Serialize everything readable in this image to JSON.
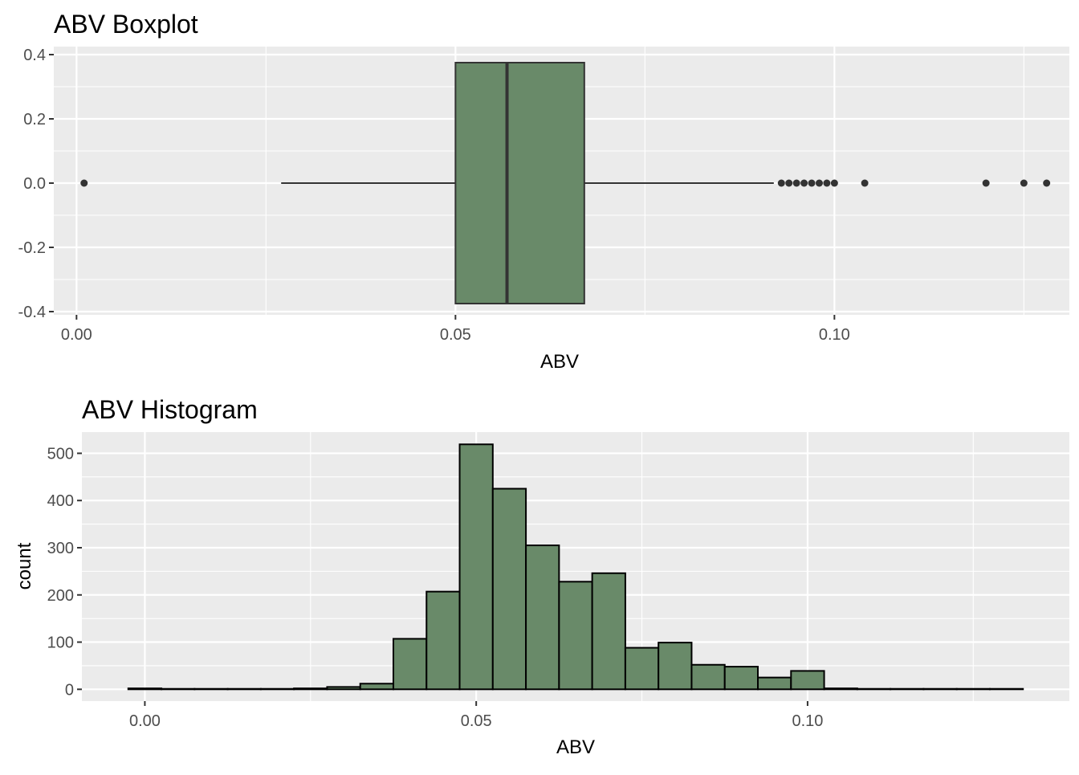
{
  "colors": {
    "panel_bg": "#ebebeb",
    "grid_major": "#ffffff",
    "fill": "#698a69",
    "outline": "#333333",
    "bar_outline": "#000000",
    "tick_text": "#4d4d4d"
  },
  "chart_data": [
    {
      "type": "box",
      "title": "ABV Boxplot",
      "xlabel": "ABV",
      "ylabel": "",
      "xlim": [
        -0.003,
        0.131
      ],
      "ylim": [
        -0.4,
        0.4
      ],
      "x_ticks": [
        {
          "value": 0.0,
          "label": "0.00"
        },
        {
          "value": 0.05,
          "label": "0.05"
        },
        {
          "value": 0.1,
          "label": "0.10"
        }
      ],
      "y_ticks": [
        {
          "value": 0.4,
          "label": "0.4"
        },
        {
          "value": 0.2,
          "label": "0.2"
        },
        {
          "value": 0.0,
          "label": "0.0"
        },
        {
          "value": -0.2,
          "label": "-0.2"
        },
        {
          "value": -0.4,
          "label": "-0.4"
        }
      ],
      "grid": true,
      "stats": {
        "whisker_low": 0.027,
        "q1": 0.05,
        "median": 0.0568,
        "q3": 0.067,
        "whisker_high": 0.092,
        "box_ymin": -0.375,
        "box_ymax": 0.375
      },
      "outliers": [
        0.001,
        0.093,
        0.094,
        0.095,
        0.096,
        0.097,
        0.098,
        0.099,
        0.1,
        0.104,
        0.12,
        0.125,
        0.128
      ]
    },
    {
      "type": "histogram",
      "title": "ABV Histogram",
      "xlabel": "ABV",
      "ylabel": "count",
      "xlim": [
        -0.0095,
        0.1395
      ],
      "ylim": [
        -25,
        545
      ],
      "x_ticks": [
        {
          "value": 0.0,
          "label": "0.00"
        },
        {
          "value": 0.05,
          "label": "0.05"
        },
        {
          "value": 0.1,
          "label": "0.10"
        }
      ],
      "y_ticks": [
        {
          "value": 0,
          "label": "0"
        },
        {
          "value": 100,
          "label": "100"
        },
        {
          "value": 200,
          "label": "200"
        },
        {
          "value": 300,
          "label": "300"
        },
        {
          "value": 400,
          "label": "400"
        },
        {
          "value": 500,
          "label": "500"
        }
      ],
      "grid": true,
      "bin_start": -0.0025,
      "bin_width": 0.005,
      "values": [
        2,
        1,
        1,
        1,
        1,
        2,
        5,
        12,
        107,
        207,
        519,
        425,
        305,
        228,
        246,
        88,
        99,
        52,
        48,
        25,
        39,
        2,
        1,
        1,
        1,
        1,
        1
      ]
    }
  ]
}
